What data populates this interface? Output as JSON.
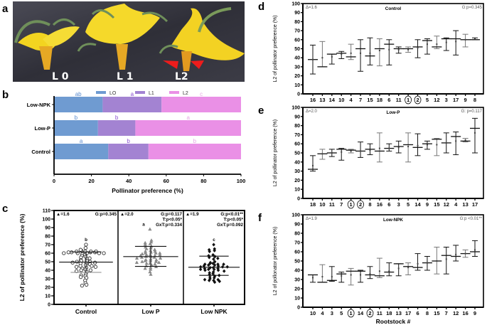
{
  "panel_labels": [
    "a",
    "b",
    "c",
    "d",
    "e",
    "f"
  ],
  "photo": {
    "labels": [
      "L 0",
      "L 1",
      "L2"
    ],
    "colors": {
      "background": "#3a3a44",
      "petal": "#f2d21c",
      "sepal": "#7a9a5a",
      "arrow": "#ee1c1c"
    }
  },
  "chart_data": [
    {
      "id": "b",
      "type": "bar",
      "orientation": "horizontal-stacked",
      "categories": [
        "Low-NPK",
        "Low-P",
        "Control"
      ],
      "series": [
        {
          "name": "LO",
          "color": "#6f9bd1",
          "values": [
            26,
            23.5,
            29
          ],
          "letters": [
            "ab",
            "b",
            "a"
          ]
        },
        {
          "name": "L1",
          "color": "#a383d2",
          "values": [
            31.5,
            20,
            21.5
          ],
          "letters": [
            "a",
            "b",
            "b"
          ]
        },
        {
          "name": "L2",
          "color": "#ea90e6",
          "values": [
            42.5,
            56.5,
            49.5
          ],
          "letters": [
            "c",
            "a",
            "b"
          ]
        }
      ],
      "letter_colors": [
        "#5a8ccf",
        "#8a4fd0",
        "#e8a5e5"
      ],
      "xlabel": "Pollinator preference (%)",
      "xlim": [
        0,
        100
      ],
      "xticks": [
        "0",
        "20",
        "40",
        "60",
        "80",
        "100"
      ],
      "legend": "top"
    },
    {
      "id": "c",
      "type": "scatter",
      "ylabel": "L2 of pollinator preference (%)",
      "ylim": [
        0,
        110
      ],
      "yticks": [
        "0",
        "10",
        "20",
        "30",
        "40",
        "50",
        "60",
        "70",
        "80",
        "90",
        "100",
        "110"
      ],
      "groups": [
        {
          "name": "Control",
          "marker": "open-circle",
          "color": "#333333",
          "mean": 49.5,
          "sd": [
            37.5,
            61.5
          ],
          "letter": "b",
          "delta": "▲=1.6",
          "stats": [
            "G:p=0.345"
          ],
          "points": [
            60,
            59,
            58,
            61,
            60,
            62,
            61,
            63,
            62,
            61,
            60,
            61,
            62,
            60,
            70,
            66,
            64,
            57,
            56,
            55,
            54,
            53,
            52,
            51,
            51,
            50,
            50,
            49,
            49,
            48,
            48,
            47,
            46,
            45,
            45,
            44,
            44,
            43,
            42,
            41,
            40,
            40,
            39,
            38,
            35,
            34,
            33,
            32,
            31,
            28,
            25,
            23,
            22,
            60,
            62
          ]
        },
        {
          "name": "Low P",
          "marker": "triangle",
          "color": "#8a8a8a",
          "mean": 56,
          "sd": [
            44.5,
            68
          ],
          "letter": "a",
          "delta": "▲=2.0",
          "stats": [
            "G:p=0.117",
            "T:p<0.05*",
            "GxT:p=0.334"
          ],
          "points": [
            88,
            75,
            73,
            72,
            71,
            70,
            68,
            67,
            66,
            65,
            64,
            63,
            62,
            61,
            60,
            60,
            59,
            58,
            58,
            57,
            57,
            56,
            56,
            55,
            55,
            54,
            54,
            53,
            52,
            52,
            51,
            51,
            50,
            50,
            49,
            49,
            48,
            48,
            47,
            46,
            45,
            44,
            43,
            42,
            41,
            38,
            35,
            60,
            58,
            62
          ]
        },
        {
          "name": "Low NPK",
          "marker": "diamond",
          "color": "#111111",
          "mean": 43.5,
          "sd": [
            34,
            56.5
          ],
          "letter": "c",
          "delta": "▲=1.9",
          "stats": [
            "G:p<0.01**",
            "T:p<0.05*",
            "GxT:p=0.092"
          ],
          "points": [
            70,
            65,
            64,
            63,
            62,
            58,
            57,
            56,
            55,
            54,
            53,
            50,
            49,
            48,
            48,
            47,
            47,
            46,
            46,
            45,
            45,
            44,
            44,
            43,
            43,
            42,
            42,
            41,
            41,
            40,
            40,
            39,
            38,
            37,
            36,
            35,
            34,
            33,
            32,
            31,
            30,
            29,
            29,
            28,
            28,
            27,
            26,
            47,
            44,
            41
          ]
        }
      ]
    },
    {
      "id": "d",
      "type": "errorbar",
      "title": "Control",
      "delta": "Δ=1.6",
      "stat": "G:p=0.345",
      "ylabel": "L2 of pollinator preference (%)",
      "ylim": [
        0,
        100
      ],
      "yticks": [
        "0",
        "10",
        "20",
        "30",
        "40",
        "50",
        "60",
        "70",
        "80",
        "90",
        "100"
      ],
      "categories": [
        "16",
        "13",
        "14",
        "10",
        "4",
        "7",
        "15",
        "18",
        "6",
        "11",
        "1",
        "2",
        "5",
        "12",
        "3",
        "17",
        "9",
        "8"
      ],
      "circled": [
        "1",
        "2"
      ],
      "mean": [
        38,
        30,
        44,
        45,
        41,
        50,
        42,
        50,
        55,
        50,
        50,
        52,
        59,
        52,
        61,
        61,
        60,
        60
      ],
      "median": [
        38,
        40,
        41,
        44,
        45,
        45,
        45,
        48,
        49,
        49,
        49,
        51,
        55,
        55,
        57,
        58,
        60,
        61
      ],
      "low": [
        22,
        30,
        33,
        39,
        38,
        25,
        32,
        31,
        32,
        45,
        46,
        40,
        44,
        50,
        48,
        43,
        52,
        60
      ],
      "high": [
        54,
        58,
        44,
        47,
        55,
        60,
        62,
        61,
        60,
        52,
        52,
        60,
        61,
        64,
        62,
        70,
        66,
        62
      ]
    },
    {
      "id": "e",
      "type": "errorbar",
      "title": "Low-P",
      "delta": "Δ=2.0",
      "stat": "G: p=0.117",
      "ylabel": "L2 of pollinator preference (%)",
      "ylim": [
        0,
        100
      ],
      "yticks": [
        "0",
        "10",
        "20",
        "30",
        "40",
        "50",
        "60",
        "70",
        "80",
        "90",
        "100"
      ],
      "categories": [
        "18",
        "10",
        "11",
        "7",
        "1",
        "2",
        "8",
        "16",
        "6",
        "3",
        "5",
        "14",
        "9",
        "15",
        "12",
        "4",
        "13",
        "17"
      ],
      "circled": [
        "1",
        "2"
      ],
      "mean": [
        32,
        49,
        50,
        54,
        53,
        52,
        54,
        52,
        55,
        57,
        59,
        56,
        60,
        65,
        61,
        68,
        63,
        77
      ],
      "median": [
        36,
        49,
        50,
        51,
        52,
        52,
        53,
        55,
        55,
        56,
        57,
        58,
        59,
        59,
        61,
        63,
        64,
        72
      ],
      "low": [
        30,
        43,
        46,
        42,
        50,
        45,
        48,
        40,
        52,
        50,
        40,
        47,
        54,
        47,
        50,
        48,
        62,
        50
      ],
      "high": [
        47,
        54,
        54,
        55,
        54,
        62,
        60,
        72,
        60,
        63,
        72,
        71,
        63,
        66,
        72,
        73,
        66,
        88
      ]
    },
    {
      "id": "f",
      "type": "errorbar",
      "title": "Low-NPK",
      "delta": "Δ=1.9",
      "stat": "G:p <0.01**",
      "ylabel": "L2 of pollonator preference (%)",
      "xlabel": "Rootstock #",
      "ylim": [
        0,
        100
      ],
      "yticks": [
        "0",
        "10",
        "20",
        "30",
        "40",
        "50",
        "60",
        "70",
        "80",
        "90",
        "100"
      ],
      "categories": [
        "10",
        "4",
        "3",
        "5",
        "1",
        "14",
        "2",
        "11",
        "18",
        "13",
        "17",
        "6",
        "8",
        "15",
        "7",
        "12",
        "16",
        "9"
      ],
      "circled": [
        "1",
        "2"
      ],
      "mean": [
        35,
        27,
        29,
        36,
        39,
        39,
        35,
        34,
        38,
        47,
        44,
        43,
        48,
        50,
        56,
        55,
        58,
        60
      ],
      "median": [
        32,
        33,
        33,
        34,
        35,
        35,
        36,
        39,
        39,
        42,
        43,
        47,
        48,
        50,
        52,
        57,
        58,
        62
      ],
      "low": [
        27,
        27,
        28,
        27,
        24,
        27,
        31,
        32,
        34,
        34,
        35,
        40,
        40,
        36,
        36,
        50,
        54,
        55
      ],
      "high": [
        35,
        46,
        44,
        38,
        42,
        40,
        44,
        53,
        48,
        47,
        48,
        58,
        55,
        65,
        65,
        67,
        62,
        72
      ]
    }
  ]
}
